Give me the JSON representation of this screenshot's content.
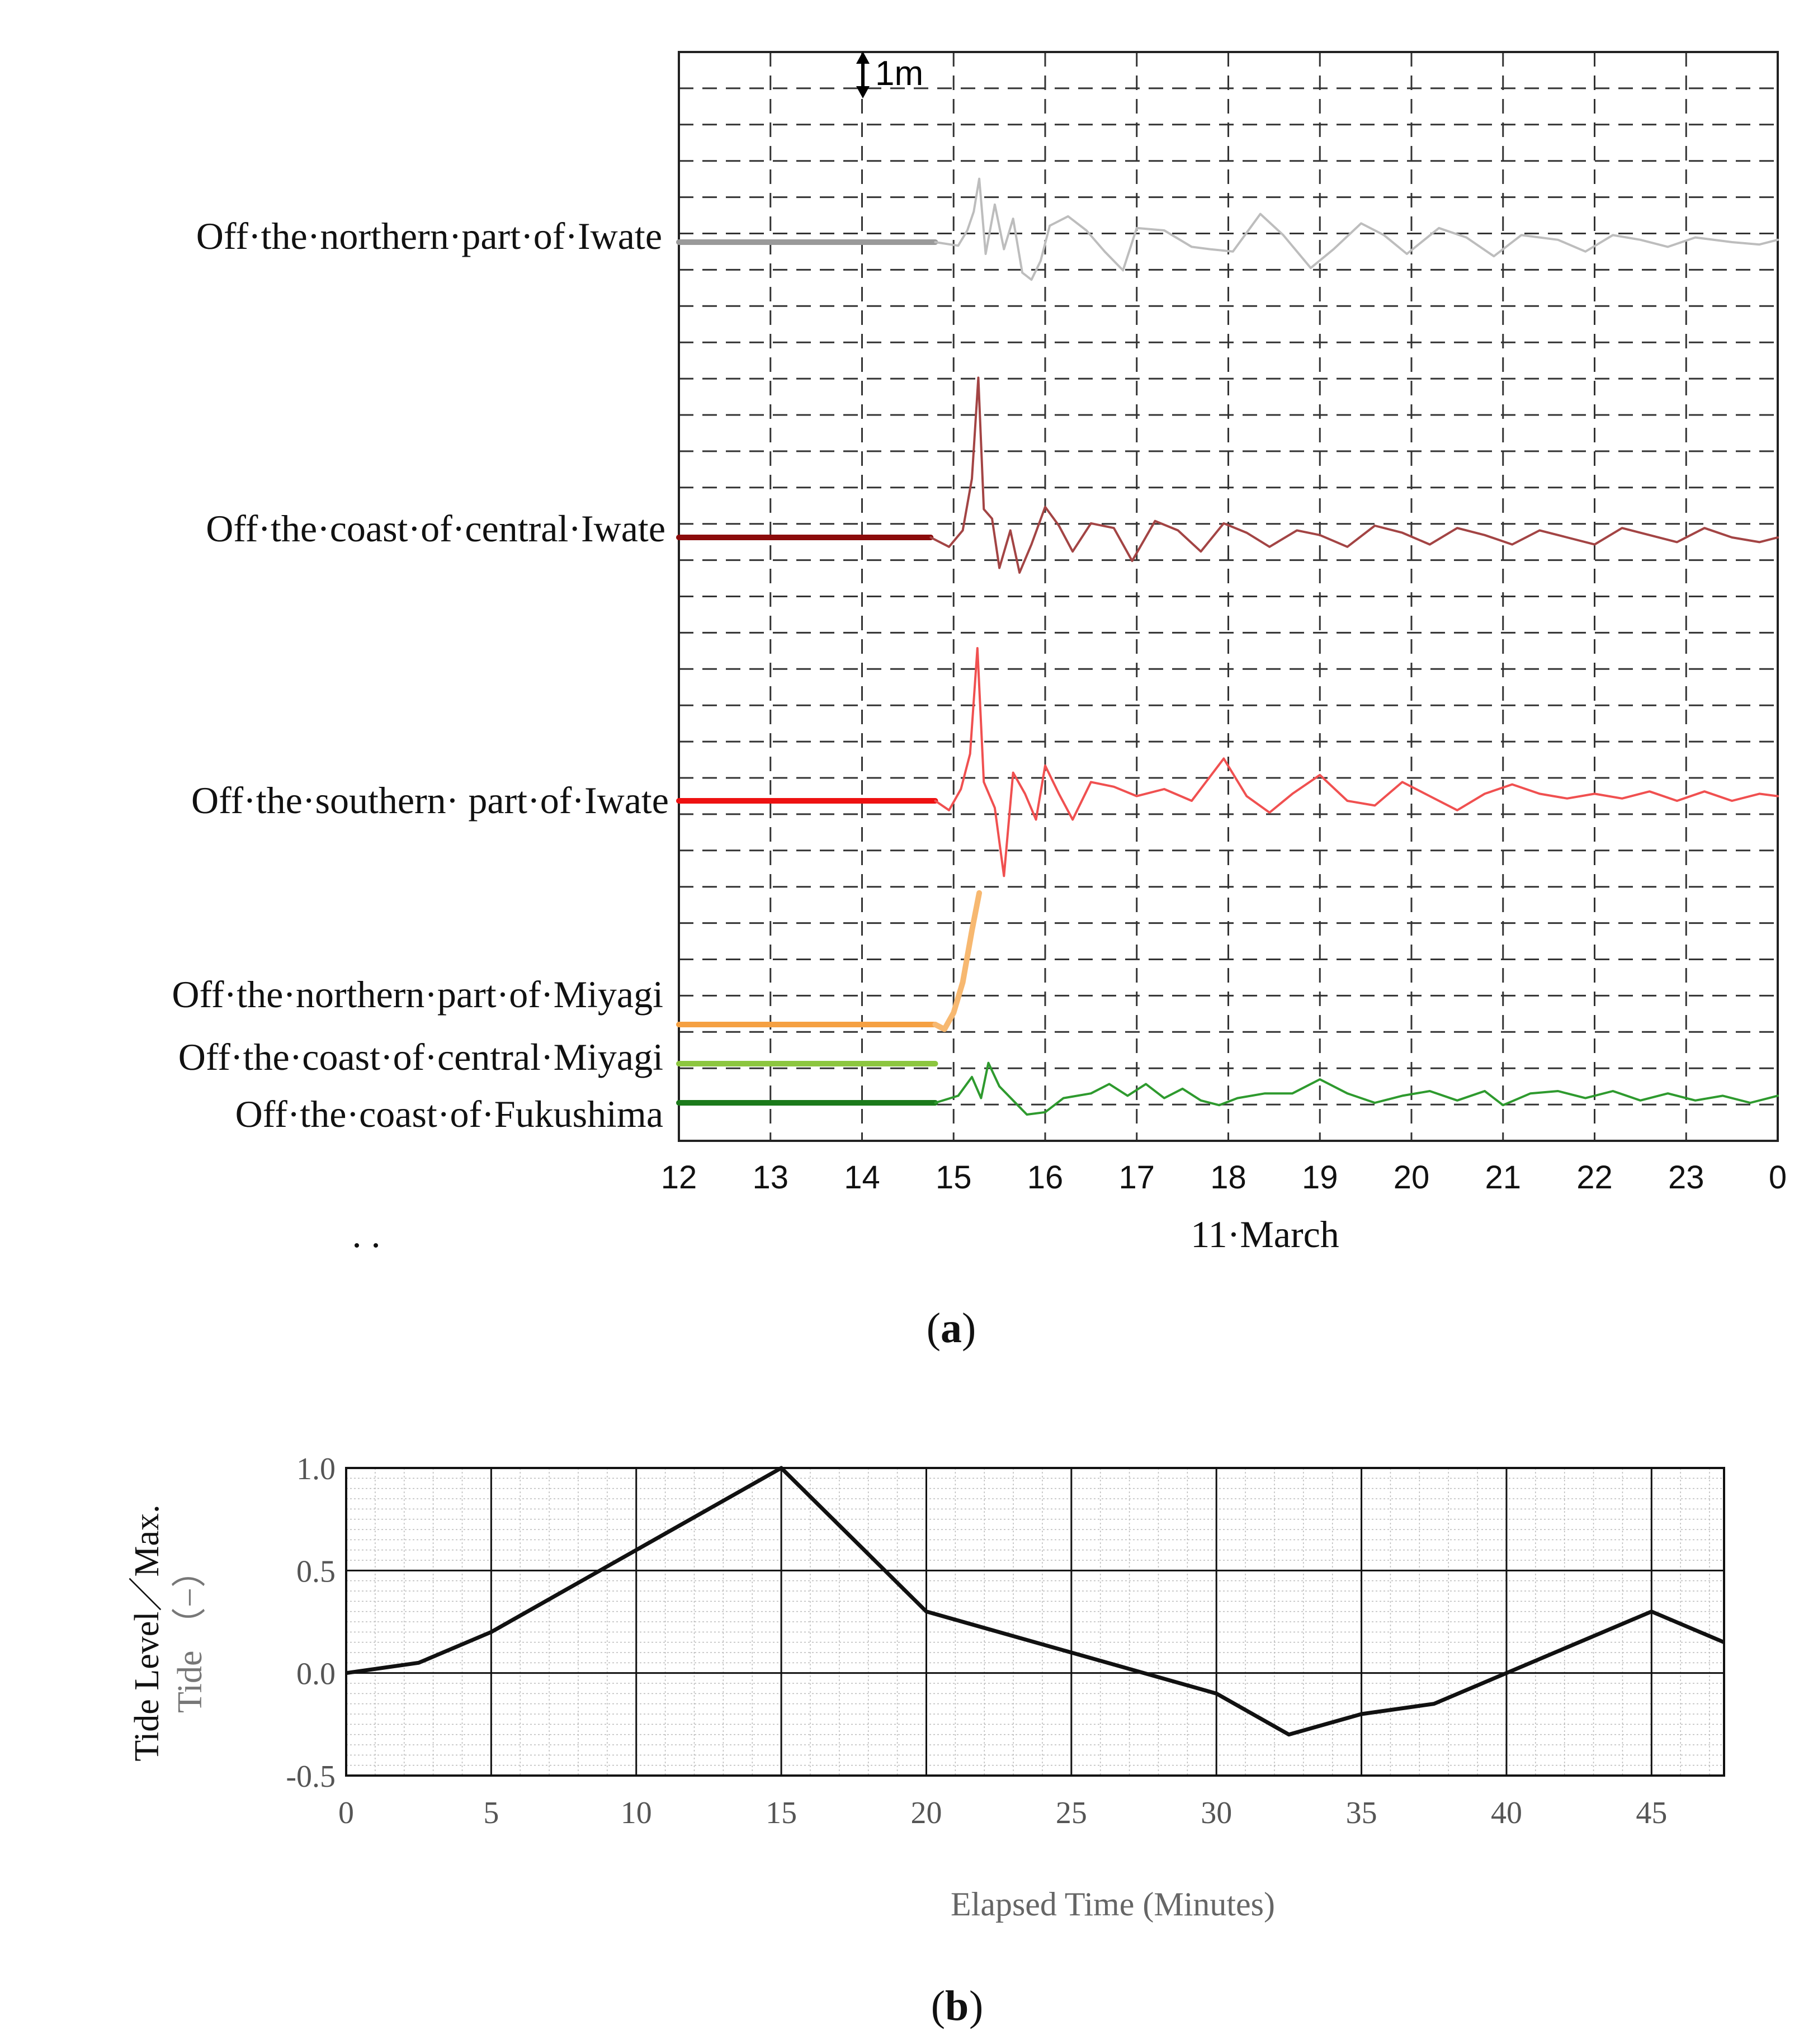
{
  "chart_data": [
    {
      "panel": "a",
      "type": "line",
      "title": "",
      "xlabel": "11·March",
      "x_ticks": [
        "12",
        "13",
        "14",
        "15",
        "16",
        "17",
        "18",
        "19",
        "20",
        "21",
        "22",
        "23",
        "0"
      ],
      "xlim": [
        12,
        24
      ],
      "scale_annotation": "1m",
      "grid": "dashed",
      "stray_text": ". .",
      "panel_label": "a",
      "series": [
        {
          "name": "Off·the·northern·part·of·Iwate",
          "color": "#9a9a9a",
          "color_after": "#bdbdbd",
          "baseline": 0,
          "values": [
            [
              12,
              0
            ],
            [
              14.8,
              0
            ],
            [
              15.05,
              -0.15
            ],
            [
              15.15,
              0.5
            ],
            [
              15.22,
              1.3
            ],
            [
              15.28,
              2.7
            ],
            [
              15.35,
              -0.5
            ],
            [
              15.45,
              1.6
            ],
            [
              15.55,
              -0.3
            ],
            [
              15.65,
              1.0
            ],
            [
              15.75,
              -1.3
            ],
            [
              15.85,
              -1.6
            ],
            [
              15.95,
              -0.8
            ],
            [
              16.05,
              0.7
            ],
            [
              16.25,
              1.1
            ],
            [
              16.45,
              0.5
            ],
            [
              16.65,
              -0.4
            ],
            [
              16.85,
              -1.2
            ],
            [
              17.0,
              0.6
            ],
            [
              17.3,
              0.5
            ],
            [
              17.6,
              -0.2
            ],
            [
              17.8,
              -0.3
            ],
            [
              18.05,
              -0.4
            ],
            [
              18.35,
              1.2
            ],
            [
              18.6,
              0.3
            ],
            [
              18.9,
              -1.1
            ],
            [
              19.15,
              -0.3
            ],
            [
              19.45,
              0.8
            ],
            [
              19.7,
              0.3
            ],
            [
              19.95,
              -0.5
            ],
            [
              20.3,
              0.6
            ],
            [
              20.6,
              0.2
            ],
            [
              20.9,
              -0.6
            ],
            [
              21.2,
              0.3
            ],
            [
              21.6,
              0.1
            ],
            [
              21.9,
              -0.4
            ],
            [
              22.2,
              0.3
            ],
            [
              22.5,
              0.1
            ],
            [
              22.8,
              -0.2
            ],
            [
              23.1,
              0.2
            ],
            [
              23.5,
              0
            ],
            [
              23.8,
              -0.1
            ],
            [
              24,
              0.1
            ]
          ]
        },
        {
          "name": "Off·the·coast·of·central·Iwate",
          "color": "#8b0a0a",
          "color_after": "#a34444",
          "baseline": 0,
          "values": [
            [
              12,
              0
            ],
            [
              14.75,
              0
            ],
            [
              14.95,
              -0.4
            ],
            [
              15.1,
              0.3
            ],
            [
              15.2,
              2.5
            ],
            [
              15.27,
              6.8
            ],
            [
              15.33,
              1.2
            ],
            [
              15.42,
              0.8
            ],
            [
              15.5,
              -1.3
            ],
            [
              15.62,
              0.3
            ],
            [
              15.72,
              -1.5
            ],
            [
              15.85,
              -0.3
            ],
            [
              16.0,
              1.3
            ],
            [
              16.15,
              0.5
            ],
            [
              16.3,
              -0.6
            ],
            [
              16.5,
              0.6
            ],
            [
              16.75,
              0.4
            ],
            [
              16.95,
              -1.0
            ],
            [
              17.2,
              0.7
            ],
            [
              17.45,
              0.3
            ],
            [
              17.7,
              -0.6
            ],
            [
              17.95,
              0.6
            ],
            [
              18.2,
              0.2
            ],
            [
              18.45,
              -0.4
            ],
            [
              18.75,
              0.3
            ],
            [
              19.0,
              0.1
            ],
            [
              19.3,
              -0.4
            ],
            [
              19.6,
              0.5
            ],
            [
              19.9,
              0.2
            ],
            [
              20.2,
              -0.3
            ],
            [
              20.5,
              0.4
            ],
            [
              20.8,
              0.1
            ],
            [
              21.1,
              -0.3
            ],
            [
              21.4,
              0.3
            ],
            [
              21.7,
              0
            ],
            [
              22.0,
              -0.3
            ],
            [
              22.3,
              0.4
            ],
            [
              22.6,
              0.1
            ],
            [
              22.9,
              -0.2
            ],
            [
              23.2,
              0.4
            ],
            [
              23.5,
              0
            ],
            [
              23.8,
              -0.2
            ],
            [
              24,
              0
            ]
          ]
        },
        {
          "name": "Off·the·southern· part·of·Iwate",
          "color": "#ee1111",
          "color_after": "#f05050",
          "baseline": 0,
          "values": [
            [
              12,
              0
            ],
            [
              14.8,
              0
            ],
            [
              14.95,
              -0.4
            ],
            [
              15.08,
              0.5
            ],
            [
              15.18,
              2.0
            ],
            [
              15.26,
              6.5
            ],
            [
              15.33,
              0.8
            ],
            [
              15.45,
              -0.3
            ],
            [
              15.55,
              -3.2
            ],
            [
              15.65,
              1.2
            ],
            [
              15.78,
              0.3
            ],
            [
              15.9,
              -0.8
            ],
            [
              16.0,
              1.5
            ],
            [
              16.15,
              0.3
            ],
            [
              16.3,
              -0.8
            ],
            [
              16.5,
              0.8
            ],
            [
              16.75,
              0.6
            ],
            [
              17.0,
              0.2
            ],
            [
              17.3,
              0.5
            ],
            [
              17.6,
              0
            ],
            [
              17.95,
              1.8
            ],
            [
              18.2,
              0.2
            ],
            [
              18.45,
              -0.5
            ],
            [
              18.7,
              0.3
            ],
            [
              19.0,
              1.1
            ],
            [
              19.3,
              0
            ],
            [
              19.6,
              -0.2
            ],
            [
              19.9,
              0.8
            ],
            [
              20.2,
              0.2
            ],
            [
              20.5,
              -0.4
            ],
            [
              20.8,
              0.3
            ],
            [
              21.1,
              0.7
            ],
            [
              21.4,
              0.3
            ],
            [
              21.7,
              0.1
            ],
            [
              22.0,
              0.3
            ],
            [
              22.3,
              0.1
            ],
            [
              22.6,
              0.4
            ],
            [
              22.9,
              0
            ],
            [
              23.2,
              0.4
            ],
            [
              23.5,
              0
            ],
            [
              23.8,
              0.3
            ],
            [
              24,
              0.2
            ]
          ]
        },
        {
          "name": "Off·the·northern·part·of·Miyagi",
          "color": "#f5a042",
          "color_after": "#f7b870",
          "baseline": 0,
          "values": [
            [
              12,
              0
            ],
            [
              14.8,
              0
            ],
            [
              14.9,
              -0.2
            ],
            [
              15.0,
              0.5
            ],
            [
              15.1,
              1.8
            ],
            [
              15.2,
              4.0
            ],
            [
              15.28,
              5.6
            ]
          ]
        },
        {
          "name": "Off·the·coast·of·central·Miyagi",
          "color": "#8cc63f",
          "color_after": "#8cc63f",
          "baseline": 0,
          "values": [
            [
              12,
              0
            ],
            [
              14.8,
              0
            ]
          ]
        },
        {
          "name": "Off·the·coast·of·Fukushima",
          "color": "#1b7a1b",
          "color_after": "#2e9a2e",
          "baseline": 0,
          "values": [
            [
              12,
              0
            ],
            [
              14.8,
              0
            ],
            [
              15.05,
              0.3
            ],
            [
              15.2,
              1.1
            ],
            [
              15.3,
              0.2
            ],
            [
              15.38,
              1.7
            ],
            [
              15.5,
              0.7
            ],
            [
              15.65,
              0.1
            ],
            [
              15.8,
              -0.5
            ],
            [
              16.0,
              -0.4
            ],
            [
              16.2,
              0.2
            ],
            [
              16.5,
              0.4
            ],
            [
              16.7,
              0.8
            ],
            [
              16.9,
              0.3
            ],
            [
              17.1,
              0.8
            ],
            [
              17.3,
              0.2
            ],
            [
              17.5,
              0.6
            ],
            [
              17.7,
              0.1
            ],
            [
              17.9,
              -0.1
            ],
            [
              18.1,
              0.2
            ],
            [
              18.4,
              0.4
            ],
            [
              18.7,
              0.4
            ],
            [
              19.0,
              1.0
            ],
            [
              19.3,
              0.4
            ],
            [
              19.6,
              0
            ],
            [
              19.9,
              0.3
            ],
            [
              20.2,
              0.5
            ],
            [
              20.5,
              0.1
            ],
            [
              20.8,
              0.5
            ],
            [
              21.0,
              -0.1
            ],
            [
              21.3,
              0.4
            ],
            [
              21.6,
              0.5
            ],
            [
              21.9,
              0.2
            ],
            [
              22.2,
              0.5
            ],
            [
              22.5,
              0.1
            ],
            [
              22.8,
              0.4
            ],
            [
              23.1,
              0.1
            ],
            [
              23.4,
              0.3
            ],
            [
              23.7,
              0
            ],
            [
              24,
              0.3
            ]
          ]
        }
      ]
    },
    {
      "panel": "b",
      "type": "line",
      "title": "",
      "xlabel": "Elapsed Time (Minutes)",
      "ylabel_line1": "Tide Level／Max.",
      "ylabel_line2": "Tide （−）",
      "xlim": [
        0,
        47.5
      ],
      "ylim": [
        -0.5,
        1.0
      ],
      "x_ticks": [
        0,
        5,
        10,
        15,
        20,
        25,
        30,
        35,
        40,
        45
      ],
      "y_ticks": [
        "1.0",
        "0.5",
        "0.0",
        "-0.5"
      ],
      "panel_label": "b",
      "series": [
        {
          "name": "Tide",
          "color": "#111111",
          "x": [
            0,
            2.5,
            5,
            10,
            15,
            20,
            25,
            30,
            32.5,
            35,
            37.5,
            40,
            45,
            47.5
          ],
          "y": [
            0.0,
            0.05,
            0.2,
            0.6,
            1.0,
            0.3,
            0.1,
            -0.1,
            -0.3,
            -0.2,
            -0.15,
            0.0,
            0.3,
            0.15
          ]
        }
      ]
    }
  ]
}
